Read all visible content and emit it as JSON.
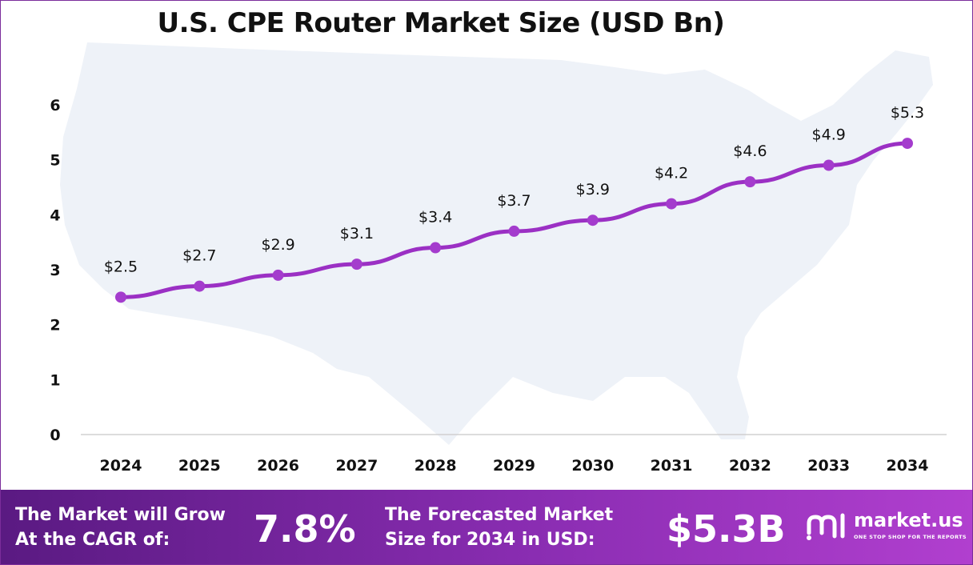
{
  "chart_data": {
    "type": "line",
    "title": "U.S. CPE Router Market Size (USD Bn)",
    "xlabel": "",
    "ylabel": "",
    "categories": [
      "2024",
      "2025",
      "2026",
      "2027",
      "2028",
      "2029",
      "2030",
      "2031",
      "2032",
      "2033",
      "2034"
    ],
    "series": [
      {
        "values": [
          2.5,
          2.7,
          2.9,
          3.1,
          3.4,
          3.7,
          3.9,
          4.2,
          4.6,
          4.9,
          5.3
        ],
        "labels": [
          "$2.5",
          "$2.7",
          "$2.9",
          "$3.1",
          "$3.4",
          "$3.7",
          "$3.9",
          "$4.2",
          "$4.6",
          "$4.9",
          "$5.3"
        ]
      }
    ],
    "yticks": [
      0,
      1,
      2,
      3,
      4,
      5,
      6
    ],
    "ylim": [
      0,
      6
    ],
    "grid": false,
    "legend": "none",
    "colors": {
      "line": "#9b30c4",
      "marker": "#a43ccd",
      "axis": "#d0d0d0",
      "map": "#eef2f8"
    },
    "background": "map-of-usa"
  },
  "footer": {
    "cagr_label_line1": "The Market will Grow",
    "cagr_label_line2": "At the CAGR of:",
    "cagr_value": "7.8%",
    "forecast_label_line1": "The Forecasted Market",
    "forecast_label_line2": "Size for 2034 in USD:",
    "forecast_value": "$5.3B"
  },
  "brand": {
    "name": "market.us",
    "tagline": "ONE STOP SHOP FOR THE REPORTS",
    "icon": "market-us-logo-icon"
  }
}
